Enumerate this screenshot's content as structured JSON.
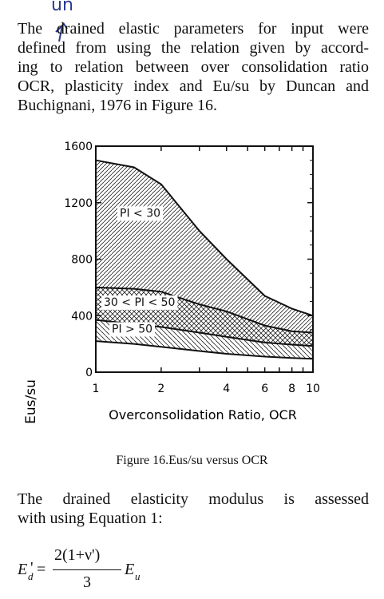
{
  "handwriting": {
    "note": "un"
  },
  "paragraph1": {
    "lines": [
      "The drained elastic parameters for input were",
      "defined from using the relation given by accord-",
      "ing to relation between over consolidation ratio",
      "OCR, plasticity index and Eu/su by Duncan and",
      "Buchignani, 1976 in Figure 16."
    ]
  },
  "figure": {
    "caption": "Figure 16.Eus/su versus OCR",
    "chart_data": {
      "type": "area",
      "xlabel": "Overconsolidation Ratio, OCR",
      "ylabel": "Eus/su",
      "x_scale": "log",
      "xlim": [
        1,
        10
      ],
      "ylim": [
        0,
        1600
      ],
      "x_ticks": [
        1,
        2,
        4,
        6,
        8,
        10
      ],
      "x_tick_labels": [
        "1",
        "2",
        "4",
        "6",
        "8",
        "10"
      ],
      "y_ticks": [
        0,
        400,
        800,
        1200,
        1600
      ],
      "y_tick_labels": [
        "0",
        "400",
        "800",
        "1200",
        "1600"
      ],
      "grid": false,
      "series": [
        {
          "name": "PI < 30",
          "x": [
            1,
            1.5,
            2,
            3,
            4,
            6,
            8,
            10
          ],
          "upper": [
            1500,
            1450,
            1330,
            1000,
            800,
            540,
            450,
            400
          ],
          "lower": [
            600,
            590,
            570,
            480,
            430,
            330,
            290,
            280
          ],
          "hatch": "diagonal"
        },
        {
          "name": "30 < PI < 50",
          "x": [
            1,
            1.5,
            2,
            3,
            4,
            6,
            8,
            10
          ],
          "upper": [
            600,
            590,
            570,
            480,
            430,
            330,
            290,
            280
          ],
          "lower": [
            370,
            340,
            320,
            280,
            250,
            210,
            195,
            185
          ],
          "hatch": "cross"
        },
        {
          "name": "PI > 50",
          "x": [
            1,
            1.5,
            2,
            3,
            4,
            6,
            8,
            10
          ],
          "upper": [
            370,
            340,
            320,
            280,
            250,
            210,
            195,
            185
          ],
          "lower": [
            220,
            200,
            180,
            150,
            130,
            110,
            100,
            95
          ],
          "hatch": "diagonal"
        }
      ]
    }
  },
  "paragraph2": {
    "lines": [
      "The drained elasticity modulus is assessed",
      "with using Equation 1:"
    ]
  },
  "equation": {
    "lhs": "E",
    "lhs_sub": "d",
    "lhs_prime": "'",
    "equals": "=",
    "numerator": "2(1+ν')",
    "denominator": "3",
    "rhs": "E",
    "rhs_sub": "u"
  }
}
